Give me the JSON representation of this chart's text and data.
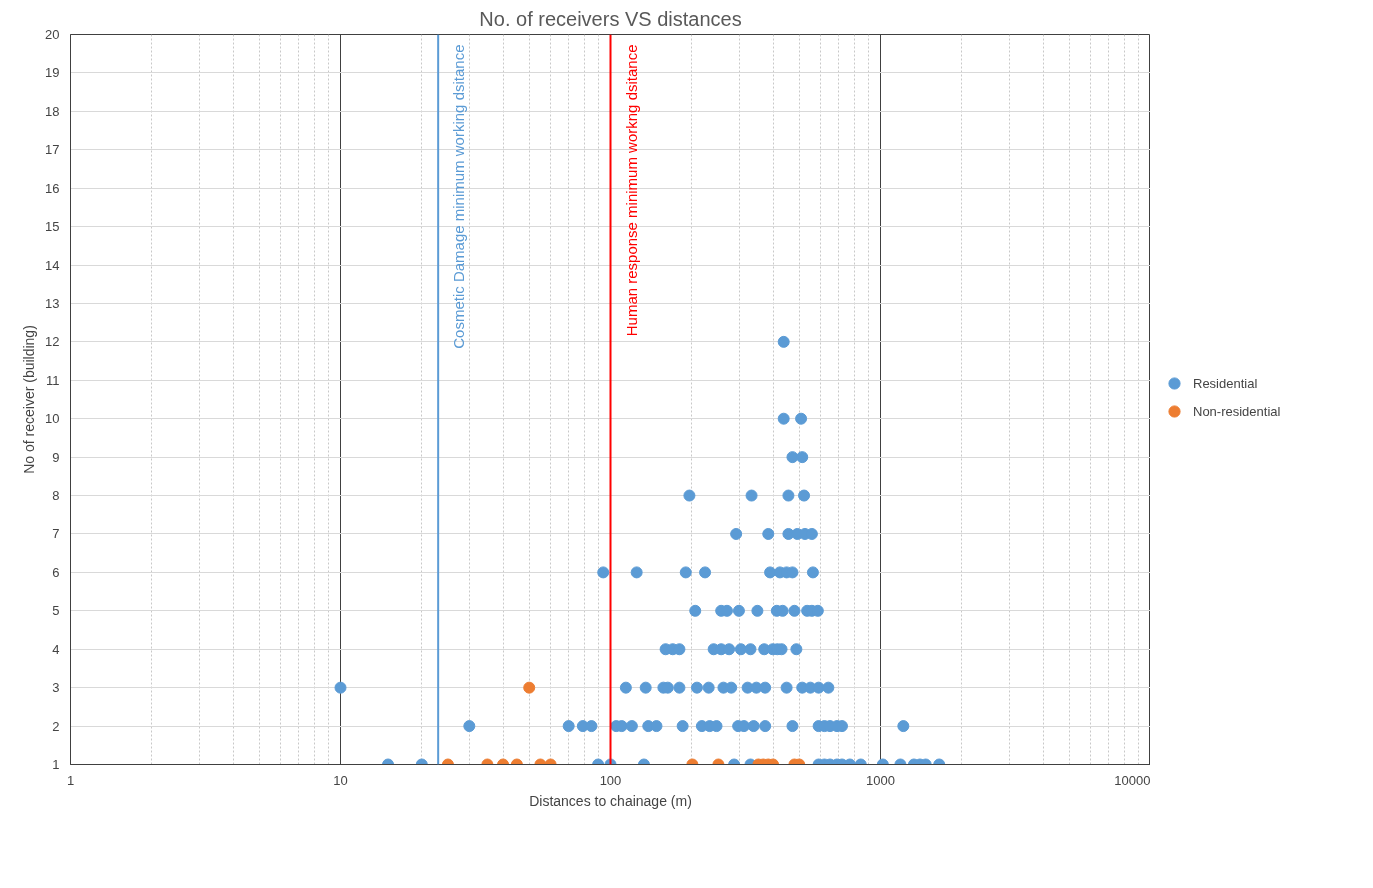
{
  "chart_data": {
    "type": "scatter",
    "title": "No. of receivers VS distances",
    "xlabel": "Distances to chainage (m)",
    "ylabel": "No of receiver (building)",
    "log": "x",
    "xlim": [
      1,
      10000
    ],
    "xticks": [
      1,
      10,
      100,
      1000,
      10000
    ],
    "ylim": [
      1,
      20
    ],
    "yticks": [
      1,
      2,
      3,
      4,
      5,
      6,
      7,
      8,
      9,
      10,
      11,
      12,
      13,
      14,
      15,
      16,
      17,
      18,
      19,
      20
    ],
    "grid": true,
    "legend": "right",
    "marker": "circle",
    "series": [
      {
        "name": "Residential",
        "color": "#5b9bd5",
        "x": [
          15,
          20,
          90,
          100,
          133,
          287,
          330,
          590,
          620,
          650,
          690,
          720,
          770,
          845,
          1020,
          1185,
          1330,
          1400,
          1470,
          1650,
          30,
          70,
          79,
          85,
          105,
          110,
          120,
          138,
          148,
          185,
          218,
          233,
          247,
          297,
          312,
          339,
          374,
          472,
          590,
          620,
          650,
          690,
          720,
          1215,
          10,
          114,
          135,
          157,
          163,
          180,
          209,
          231,
          262,
          280,
          322,
          347,
          374,
          449,
          513,
          550,
          590,
          641,
          160,
          170,
          180,
          241,
          257,
          275,
          304,
          330,
          371,
          399,
          415,
          430,
          488,
          206,
          257,
          270,
          299,
          350,
          413,
          434,
          480,
          535,
          557,
          586,
          94,
          125,
          190,
          224,
          390,
          424,
          449,
          472,
          562,
          292,
          384,
          456,
          492,
          525,
          557,
          196,
          333,
          456,
          521,
          472,
          513,
          438,
          508,
          438
        ],
        "values": [
          1,
          1,
          1,
          1,
          1,
          1,
          1,
          1,
          1,
          1,
          1,
          1,
          1,
          1,
          1,
          1,
          1,
          1,
          1,
          1,
          2,
          2,
          2,
          2,
          2,
          2,
          2,
          2,
          2,
          2,
          2,
          2,
          2,
          2,
          2,
          2,
          2,
          2,
          2,
          2,
          2,
          2,
          2,
          2,
          3,
          3,
          3,
          3,
          3,
          3,
          3,
          3,
          3,
          3,
          3,
          3,
          3,
          3,
          3,
          3,
          3,
          3,
          4,
          4,
          4,
          4,
          4,
          4,
          4,
          4,
          4,
          4,
          4,
          4,
          4,
          5,
          5,
          5,
          5,
          5,
          5,
          5,
          5,
          5,
          5,
          5,
          6,
          6,
          6,
          6,
          6,
          6,
          6,
          6,
          6,
          7,
          7,
          7,
          7,
          7,
          7,
          8,
          8,
          8,
          8,
          9,
          9,
          10,
          10,
          12
        ]
      },
      {
        "name": "Non-residential",
        "color": "#ed7d31",
        "x": [
          25,
          35,
          40,
          45,
          55,
          60,
          201,
          251,
          353,
          368,
          384,
          400,
          480,
          500,
          50
        ],
        "values": [
          1,
          1,
          1,
          1,
          1,
          1,
          1,
          1,
          1,
          1,
          1,
          1,
          1,
          1,
          3
        ]
      }
    ],
    "ref_lines": [
      {
        "axis": "x",
        "value": 23,
        "label": "Cosmetic Damage minimum working dsitance",
        "color": "#5b9bd5"
      },
      {
        "axis": "x",
        "value": 100,
        "label": "Human response minimum workng dsitance",
        "color": "#ff0000"
      }
    ]
  }
}
